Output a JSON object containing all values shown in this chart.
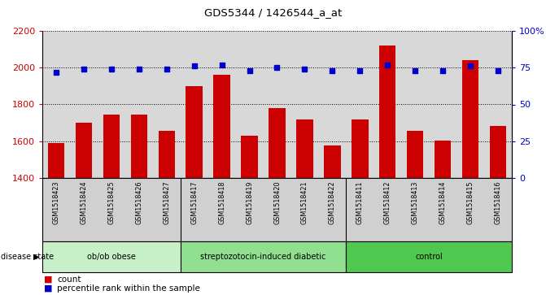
{
  "title": "GDS5344 / 1426544_a_at",
  "samples": [
    "GSM1518423",
    "GSM1518424",
    "GSM1518425",
    "GSM1518426",
    "GSM1518427",
    "GSM1518417",
    "GSM1518418",
    "GSM1518419",
    "GSM1518420",
    "GSM1518421",
    "GSM1518422",
    "GSM1518411",
    "GSM1518412",
    "GSM1518413",
    "GSM1518414",
    "GSM1518415",
    "GSM1518416"
  ],
  "counts": [
    1590,
    1700,
    1745,
    1745,
    1655,
    1900,
    1960,
    1630,
    1780,
    1720,
    1575,
    1720,
    2120,
    1655,
    1605,
    2040,
    1685
  ],
  "percentiles": [
    72,
    74,
    74,
    74,
    74,
    76,
    77,
    73,
    75,
    74,
    73,
    73,
    77,
    73,
    73,
    76,
    73
  ],
  "groups": [
    {
      "label": "ob/ob obese",
      "start": 0,
      "end": 5,
      "color": "#c8f0c8"
    },
    {
      "label": "streptozotocin-induced diabetic",
      "start": 5,
      "end": 11,
      "color": "#90e090"
    },
    {
      "label": "control",
      "start": 11,
      "end": 17,
      "color": "#50c850"
    }
  ],
  "ylim_left": [
    1400,
    2200
  ],
  "ylim_right": [
    0,
    100
  ],
  "yticks_left": [
    1400,
    1600,
    1800,
    2000,
    2200
  ],
  "yticks_right": [
    0,
    25,
    50,
    75,
    100
  ],
  "ytick_labels_right": [
    "0",
    "25",
    "50",
    "75",
    "100%"
  ],
  "bar_color": "#cc0000",
  "dot_color": "#0000cc",
  "bar_width": 0.6,
  "grid_color": "black",
  "background_color": "#d8d8d8",
  "plot_bg_color": "#d8d8d8",
  "legend_count_color": "#cc0000",
  "legend_dot_color": "#0000cc",
  "disease_state_label": "disease state",
  "ylabel_left_color": "#cc0000",
  "ylabel_right_color": "#0000cc"
}
